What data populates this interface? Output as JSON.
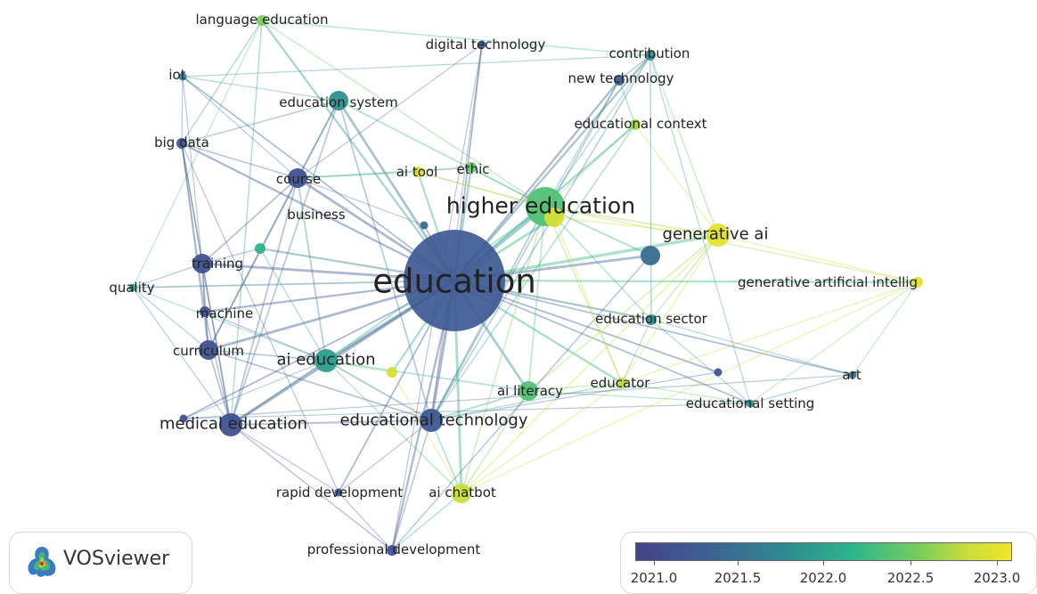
{
  "app": {
    "name": "VOSviewer",
    "logo_icon": "vosviewer-logo-icon"
  },
  "legend": {
    "ticks": [
      "2021.0",
      "2021.5",
      "2022.0",
      "2022.5",
      "2023.0"
    ],
    "min": 2020.9,
    "max": 2023.15,
    "colors": [
      "#44438a",
      "#3d5f94",
      "#2f8a8f",
      "#2db68b",
      "#7ccd5c",
      "#c8dd3b",
      "#f3e42a"
    ]
  },
  "nodes": [
    {
      "label": "education",
      "year": 2021.2,
      "weight": 10,
      "label_size": "xl"
    },
    {
      "label": "higher education",
      "year": 2022.2,
      "weight": 5,
      "label_size": "lg"
    },
    {
      "label": "generative ai",
      "year": 2023.0,
      "weight": 4,
      "label_size": "md"
    },
    {
      "label": "generative artificial intellig",
      "year": 2023.0,
      "weight": 2,
      "label_size": "sm"
    },
    {
      "label": "ai tool",
      "year": 2023.0,
      "weight": 2,
      "label_size": "sm"
    },
    {
      "label": "ethic",
      "year": 2022.3,
      "weight": 2,
      "label_size": "sm"
    },
    {
      "label": "educational context",
      "year": 2022.6,
      "weight": 2,
      "label_size": "sm"
    },
    {
      "label": "contribution",
      "year": 2021.7,
      "weight": 2,
      "label_size": "sm"
    },
    {
      "label": "new technology",
      "year": 2021.3,
      "weight": 2,
      "label_size": "sm"
    },
    {
      "label": "digital technology",
      "year": 2021.2,
      "weight": 1,
      "label_size": "sm"
    },
    {
      "label": "education system",
      "year": 2021.7,
      "weight": 3,
      "label_size": "sm"
    },
    {
      "label": "language education",
      "year": 2022.4,
      "weight": 2,
      "label_size": "sm"
    },
    {
      "label": "iot",
      "year": 2021.6,
      "weight": 1,
      "label_size": "sm"
    },
    {
      "label": "big data",
      "year": 2021.2,
      "weight": 2,
      "label_size": "sm"
    },
    {
      "label": "course",
      "year": 2021.1,
      "weight": 3,
      "label_size": "sm"
    },
    {
      "label": "business",
      "year": 2021.4,
      "weight": 1,
      "label_size": "sm"
    },
    {
      "label": "training",
      "year": 2021.1,
      "weight": 3,
      "label_size": "sm"
    },
    {
      "label": "quality",
      "year": 2021.9,
      "weight": 1,
      "label_size": "sm"
    },
    {
      "label": "machine",
      "year": 2021.1,
      "weight": 2,
      "label_size": "sm"
    },
    {
      "label": "curriculum",
      "year": 2021.1,
      "weight": 3,
      "label_size": "sm"
    },
    {
      "label": "ai education",
      "year": 2021.8,
      "weight": 4,
      "label_size": "md"
    },
    {
      "label": "medical education",
      "year": 2021.1,
      "weight": 4,
      "label_size": "md"
    },
    {
      "label": "educational technology",
      "year": 2021.2,
      "weight": 4,
      "label_size": "md"
    },
    {
      "label": "ai literacy",
      "year": 2022.2,
      "weight": 3,
      "label_size": "sm"
    },
    {
      "label": "educator",
      "year": 2022.7,
      "weight": 2,
      "label_size": "sm"
    },
    {
      "label": "education sector",
      "year": 2021.7,
      "weight": 2,
      "label_size": "sm"
    },
    {
      "label": "educational setting",
      "year": 2021.7,
      "weight": 1,
      "label_size": "sm"
    },
    {
      "label": "art",
      "year": 2021.5,
      "weight": 1,
      "label_size": "sm"
    },
    {
      "label": "ai chatbot",
      "year": 2022.8,
      "weight": 3,
      "label_size": "sm"
    },
    {
      "label": "rapid development",
      "year": 2021.2,
      "weight": 1,
      "label_size": "sm"
    },
    {
      "label": "professional development",
      "year": 2021.1,
      "weight": 2,
      "label_size": "sm"
    },
    {
      "label": "",
      "year": 2021.1,
      "weight": 1,
      "label_size": "sm"
    },
    {
      "label": "",
      "year": 2021.4,
      "weight": 3,
      "label_size": "sm"
    },
    {
      "label": "",
      "year": 2022.0,
      "weight": 2,
      "label_size": "sm"
    },
    {
      "label": "",
      "year": 2022.9,
      "weight": 2,
      "label_size": "sm"
    },
    {
      "label": "",
      "year": 2021.1,
      "weight": 1,
      "label_size": "sm"
    },
    {
      "label": "",
      "year": 2022.9,
      "weight": 3,
      "label_size": "sm"
    }
  ],
  "edges": [
    [
      0,
      1
    ],
    [
      0,
      2
    ],
    [
      0,
      3
    ],
    [
      0,
      4
    ],
    [
      0,
      5
    ],
    [
      0,
      6
    ],
    [
      0,
      7
    ],
    [
      0,
      8
    ],
    [
      0,
      9
    ],
    [
      0,
      10
    ],
    [
      0,
      11
    ],
    [
      0,
      12
    ],
    [
      0,
      13
    ],
    [
      0,
      14
    ],
    [
      0,
      15
    ],
    [
      0,
      16
    ],
    [
      0,
      17
    ],
    [
      0,
      18
    ],
    [
      0,
      19
    ],
    [
      0,
      20
    ],
    [
      0,
      21
    ],
    [
      0,
      22
    ],
    [
      0,
      23
    ],
    [
      0,
      24
    ],
    [
      0,
      25
    ],
    [
      0,
      26
    ],
    [
      0,
      27
    ],
    [
      0,
      28
    ],
    [
      0,
      29
    ],
    [
      0,
      30
    ],
    [
      0,
      31
    ],
    [
      0,
      32
    ],
    [
      0,
      33
    ],
    [
      0,
      34
    ],
    [
      0,
      35
    ],
    [
      0,
      36
    ],
    [
      1,
      2
    ],
    [
      1,
      3
    ],
    [
      1,
      4
    ],
    [
      1,
      5
    ],
    [
      1,
      6
    ],
    [
      1,
      7
    ],
    [
      1,
      8
    ],
    [
      1,
      10
    ],
    [
      1,
      11
    ],
    [
      1,
      20
    ],
    [
      1,
      22
    ],
    [
      1,
      23
    ],
    [
      1,
      24
    ],
    [
      1,
      25
    ],
    [
      1,
      28
    ],
    [
      1,
      32
    ],
    [
      1,
      36
    ],
    [
      2,
      3
    ],
    [
      2,
      24
    ],
    [
      2,
      28
    ],
    [
      2,
      25
    ],
    [
      2,
      6
    ],
    [
      2,
      7
    ],
    [
      2,
      23
    ],
    [
      2,
      36
    ],
    [
      3,
      26
    ],
    [
      3,
      27
    ],
    [
      3,
      24
    ],
    [
      3,
      28
    ],
    [
      7,
      8
    ],
    [
      7,
      25
    ],
    [
      7,
      26
    ],
    [
      7,
      22
    ],
    [
      7,
      11
    ],
    [
      6,
      22
    ],
    [
      6,
      8
    ],
    [
      8,
      22
    ],
    [
      9,
      22
    ],
    [
      9,
      14
    ],
    [
      9,
      30
    ],
    [
      10,
      12
    ],
    [
      10,
      13
    ],
    [
      10,
      14
    ],
    [
      10,
      22
    ],
    [
      10,
      19
    ],
    [
      10,
      21
    ],
    [
      11,
      13
    ],
    [
      11,
      17
    ],
    [
      11,
      21
    ],
    [
      12,
      13
    ],
    [
      12,
      14
    ],
    [
      12,
      16
    ],
    [
      12,
      7
    ],
    [
      13,
      14
    ],
    [
      13,
      16
    ],
    [
      13,
      18
    ],
    [
      13,
      19
    ],
    [
      13,
      21
    ],
    [
      13,
      29
    ],
    [
      14,
      16
    ],
    [
      14,
      19
    ],
    [
      14,
      20
    ],
    [
      14,
      15
    ],
    [
      14,
      21
    ],
    [
      16,
      18
    ],
    [
      16,
      19
    ],
    [
      16,
      21
    ],
    [
      16,
      17
    ],
    [
      16,
      33
    ],
    [
      17,
      19
    ],
    [
      17,
      20
    ],
    [
      17,
      21
    ],
    [
      18,
      19
    ],
    [
      18,
      21
    ],
    [
      18,
      20
    ],
    [
      19,
      20
    ],
    [
      19,
      21
    ],
    [
      19,
      22
    ],
    [
      20,
      21
    ],
    [
      20,
      22
    ],
    [
      20,
      23
    ],
    [
      20,
      28
    ],
    [
      20,
      34
    ],
    [
      20,
      35
    ],
    [
      21,
      22
    ],
    [
      21,
      29
    ],
    [
      21,
      30
    ],
    [
      22,
      23
    ],
    [
      22,
      28
    ],
    [
      22,
      29
    ],
    [
      22,
      30
    ],
    [
      22,
      24
    ],
    [
      22,
      31
    ],
    [
      23,
      24
    ],
    [
      23,
      28
    ],
    [
      23,
      26
    ],
    [
      24,
      26
    ],
    [
      24,
      25
    ],
    [
      25,
      26
    ],
    [
      25,
      27
    ],
    [
      26,
      27
    ],
    [
      26,
      35
    ],
    [
      27,
      35
    ],
    [
      28,
      30
    ],
    [
      28,
      24
    ],
    [
      29,
      30
    ],
    [
      30,
      32
    ],
    [
      5,
      4
    ],
    [
      5,
      14
    ],
    [
      4,
      14
    ],
    [
      4,
      1
    ],
    [
      33,
      20
    ],
    [
      34,
      28
    ],
    [
      36,
      24
    ]
  ]
}
